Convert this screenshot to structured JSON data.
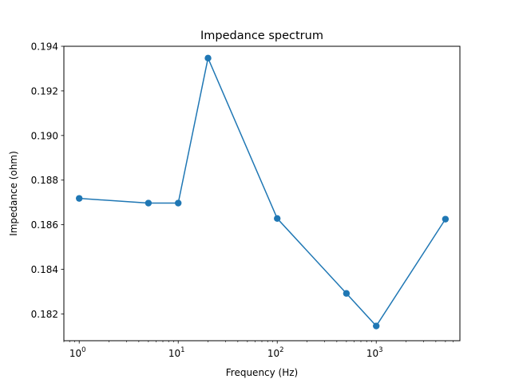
{
  "chart_data": {
    "type": "line",
    "title": "Impedance spectrum",
    "xlabel": "Frequency (Hz)",
    "ylabel": "Impedance (ohm)",
    "xscale": "log",
    "xlim": [
      0.7,
      7000
    ],
    "ylim": [
      0.1808,
      0.194
    ],
    "grid": false,
    "color": "#1f77b4",
    "marker": "circle",
    "x": [
      1,
      5,
      10,
      20,
      100,
      500,
      1000,
      5000
    ],
    "y": [
      0.18718,
      0.18697,
      0.18697,
      0.19347,
      0.18628,
      0.18292,
      0.18146,
      0.18625
    ],
    "xticks": [
      {
        "value": 1,
        "base": "10",
        "exp": "0"
      },
      {
        "value": 10,
        "base": "10",
        "exp": "1"
      },
      {
        "value": 100,
        "base": "10",
        "exp": "2"
      },
      {
        "value": 1000,
        "base": "10",
        "exp": "3"
      }
    ],
    "yticks": [
      {
        "value": 0.182,
        "label": "0.182"
      },
      {
        "value": 0.184,
        "label": "0.184"
      },
      {
        "value": 0.186,
        "label": "0.186"
      },
      {
        "value": 0.188,
        "label": "0.188"
      },
      {
        "value": 0.19,
        "label": "0.190"
      },
      {
        "value": 0.192,
        "label": "0.192"
      },
      {
        "value": 0.194,
        "label": "0.194"
      }
    ]
  }
}
